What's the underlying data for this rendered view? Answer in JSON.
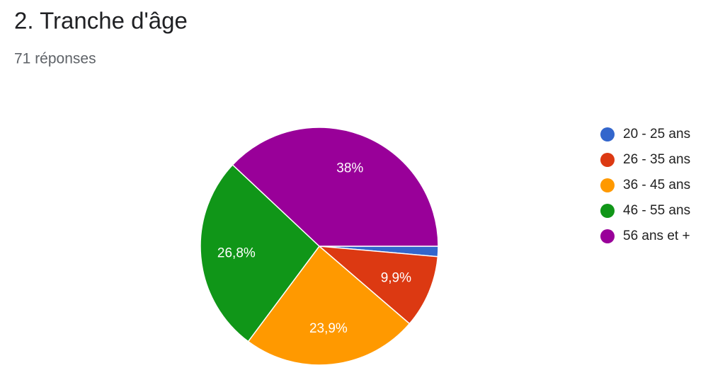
{
  "chart_data": {
    "type": "pie",
    "title": "2. Tranche d'âge",
    "subtitle": "71 réponses",
    "categories": [
      "20 - 25 ans",
      "26 - 35 ans",
      "36 - 45 ans",
      "46 - 55 ans",
      "56 ans et +"
    ],
    "values": [
      1.4,
      9.9,
      23.9,
      26.8,
      38
    ],
    "value_labels": [
      null,
      "9,9%",
      "23,9%",
      "26,8%",
      "38%"
    ],
    "colors": [
      "#3366cc",
      "#dc3912",
      "#ff9900",
      "#109618",
      "#990099"
    ],
    "legend": "right"
  }
}
